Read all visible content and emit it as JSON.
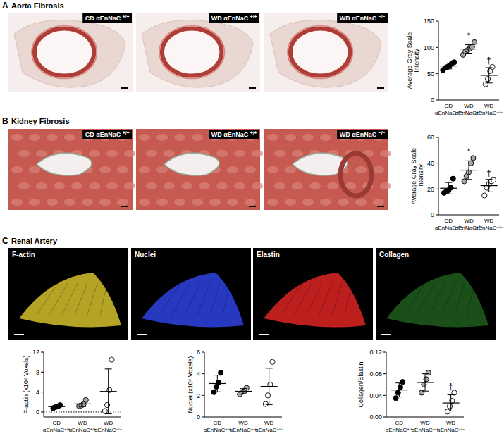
{
  "panels": [
    {
      "letter": "A",
      "title": "Aorta Fibrosis",
      "image_labels": [
        "CD αEnNaC +/+",
        "WD αEnNaC +/+",
        "WD αEnNaC −/−"
      ]
    },
    {
      "letter": "B",
      "title": "Kidney Fibrosis",
      "image_labels": [
        "CD αEnNaC +/+",
        "WD αEnNaC +/+",
        "WD αEnNaC −/−"
      ]
    },
    {
      "letter": "C",
      "title": "Renal Artery",
      "image_labels": [
        "F-actin",
        "Nuclei",
        "Elastin",
        "Collagen"
      ]
    }
  ],
  "chart_data": [
    {
      "type": "dot",
      "ylabel": [
        "Average Gray Scale",
        "Intensity"
      ],
      "categories": [
        "CD αEnNaC+/+",
        "WD αEnNaC+/+",
        "WD αEnNaC−/−"
      ],
      "colors": [
        "#000000",
        "#a6a6a6",
        "#ffffff"
      ],
      "values": [
        [
          57,
          61,
          63,
          66,
          70,
          72
        ],
        [
          86,
          92,
          95,
          98,
          101,
          110
        ],
        [
          30,
          40,
          55,
          63
        ]
      ],
      "means": [
        64.8,
        97,
        47
      ],
      "errors": [
        5.6,
        8,
        14.6
      ],
      "annotations": [
        null,
        "*",
        "†"
      ],
      "ylim": [
        0,
        150
      ],
      "yticks": [
        0,
        50,
        100,
        150
      ]
    },
    {
      "type": "dot",
      "ylabel": [
        "Average Gray Scale",
        "Intensity"
      ],
      "categories": [
        "CD αEnNaC+/+",
        "WD αEnNaC+/+",
        "WD αEnNaC−/−"
      ],
      "colors": [
        "#000000",
        "#a6a6a6",
        "#ffffff"
      ],
      "values": [
        [
          17,
          18,
          19,
          21,
          28
        ],
        [
          26,
          30,
          33,
          40,
          44
        ],
        [
          15,
          21,
          24,
          26,
          27
        ]
      ],
      "means": [
        20.6,
        34.6,
        22.6
      ],
      "errors": [
        4.4,
        7.2,
        4.8
      ],
      "annotations": [
        null,
        "*",
        "†"
      ],
      "ylim": [
        0,
        60
      ],
      "yticks": [
        0,
        20,
        40,
        60
      ]
    },
    {
      "type": "dot",
      "ylabel": [
        "F-actin (x10⁶ Voxels)"
      ],
      "categories": [
        "CD αEnNaC+/+",
        "WD αEnNaC+/+",
        "WD αEnNaC−/−"
      ],
      "colors": [
        "#000000",
        "#a6a6a6",
        "#ffffff"
      ],
      "values": [
        [
          0.8,
          1.0,
          1.1,
          1.4
        ],
        [
          1.2,
          1.3,
          1.6,
          2.4
        ],
        [
          0.2,
          1.4,
          4.4,
          10.5
        ]
      ],
      "means": [
        1.08,
        1.63,
        4.13
      ],
      "errors": [
        0.25,
        0.54,
        4.5
      ],
      "reference_line": 0,
      "ylim": [
        -1,
        12
      ],
      "yticks": [
        0,
        4,
        8,
        12
      ]
    },
    {
      "type": "dot",
      "ylabel": [
        "Nuclei (x10⁶ Voxels)"
      ],
      "categories": [
        "CD αEnNaC+/+",
        "WD αEnNaC+/+",
        "WD αEnNaC−/−"
      ],
      "colors": [
        "#000000",
        "#a6a6a6",
        "#ffffff"
      ],
      "values": [
        [
          2.3,
          2.8,
          3.2,
          4.1
        ],
        [
          2.1,
          2.3,
          2.4,
          2.7
        ],
        [
          1.2,
          2.0,
          3.0,
          5.1
        ]
      ],
      "means": [
        3.1,
        2.38,
        2.83
      ],
      "errors": [
        0.77,
        0.25,
        1.68
      ],
      "ylim": [
        0,
        6
      ],
      "yticks": [
        0,
        2,
        4,
        6
      ]
    },
    {
      "type": "dot",
      "ylabel": [
        "Collagen/Elastin"
      ],
      "categories": [
        "CD αEnNaC+/+",
        "WD αEnNaC+/+",
        "WD αEnNaC−/−"
      ],
      "colors": [
        "#000000",
        "#a6a6a6",
        "#ffffff"
      ],
      "values": [
        [
          0.035,
          0.045,
          0.055,
          0.065
        ],
        [
          0.045,
          0.06,
          0.07,
          0.082
        ],
        [
          0.01,
          0.02,
          0.03,
          0.045
        ]
      ],
      "means": [
        0.05,
        0.064,
        0.026
      ],
      "errors": [
        0.013,
        0.016,
        0.015
      ],
      "annotations": [
        null,
        null,
        "†"
      ],
      "ylim": [
        0,
        0.12
      ],
      "yticks": [
        {
          "value": 0,
          "label": "0.00"
        },
        {
          "value": 0.04,
          "label": "0.04"
        },
        {
          "value": 0.08,
          "label": "0.08"
        },
        {
          "value": 0.12,
          "label": "0.12"
        }
      ]
    }
  ]
}
